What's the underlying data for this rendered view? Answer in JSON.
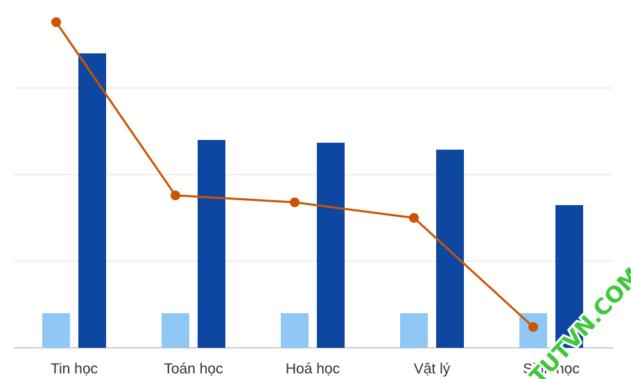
{
  "chart_data": {
    "type": "bar",
    "categories": [
      "Tin học",
      "Toán học",
      "Hoá học",
      "Vật lý",
      "Sinh học"
    ],
    "series": [
      {
        "kind": "bar",
        "color": "#90c8f5",
        "values": [
          10,
          10,
          10,
          10,
          10
        ]
      },
      {
        "kind": "bar",
        "color": "#0d47a1",
        "values": [
          85,
          60,
          59.2,
          57.2,
          41.2
        ]
      },
      {
        "kind": "line",
        "color": "#cc5500",
        "values": [
          94,
          44,
          42,
          37.5,
          6
        ]
      }
    ],
    "ylim": [
      0,
      100
    ],
    "gridlines": [
      0,
      25,
      50,
      75
    ],
    "grid": true,
    "legend": false
  },
  "watermark": {
    "text": "TUTVN.COM",
    "color": "#3fc83a"
  }
}
